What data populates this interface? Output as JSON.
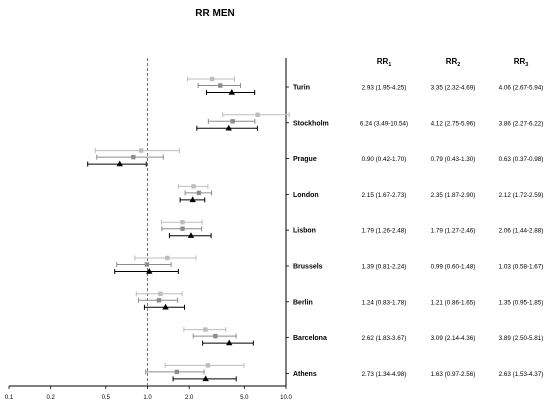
{
  "chart_data": {
    "type": "forest",
    "title": "RR MEN",
    "x_scale": "log",
    "xlim": [
      0.1,
      10.0
    ],
    "x_ticks": [
      "0.1",
      "0.2",
      "0.5",
      "1.0",
      "2.0",
      "5.0",
      "10.0"
    ],
    "reference_line": 1.0,
    "columns": [
      {
        "base": "RR",
        "sub": "1"
      },
      {
        "base": "RR",
        "sub": "2"
      },
      {
        "base": "RR",
        "sub": "3"
      }
    ],
    "rows": [
      {
        "city": "Turin",
        "rr": [
          {
            "est": 2.93,
            "lo": 1.95,
            "hi": 4.25,
            "text": "2.93 (1.95-4.25)"
          },
          {
            "est": 3.35,
            "lo": 2.32,
            "hi": 4.69,
            "text": "3.35 (2.32-4.69)"
          },
          {
            "est": 4.06,
            "lo": 2.67,
            "hi": 5.94,
            "text": "4.06 (2.67-5.94)"
          }
        ]
      },
      {
        "city": "Stockholm",
        "rr": [
          {
            "est": 6.24,
            "lo": 3.49,
            "hi": 10.54,
            "text": "6.24 (3.49-10.54)"
          },
          {
            "est": 4.12,
            "lo": 2.75,
            "hi": 5.96,
            "text": "4.12 (2.75-5.96)"
          },
          {
            "est": 3.86,
            "lo": 2.27,
            "hi": 6.22,
            "text": "3.86 (2.27-6.22)"
          }
        ]
      },
      {
        "city": "Prague",
        "rr": [
          {
            "est": 0.9,
            "lo": 0.42,
            "hi": 1.7,
            "text": "0.90 (0.42-1.70)"
          },
          {
            "est": 0.79,
            "lo": 0.43,
            "hi": 1.3,
            "text": "0.79 (0.43-1.30)"
          },
          {
            "est": 0.63,
            "lo": 0.37,
            "hi": 0.98,
            "text": "0.63 (0.37-0.98)"
          }
        ]
      },
      {
        "city": "London",
        "rr": [
          {
            "est": 2.15,
            "lo": 1.67,
            "hi": 2.73,
            "text": "2.15 (1.67-2.73)"
          },
          {
            "est": 2.35,
            "lo": 1.87,
            "hi": 2.9,
            "text": "2.35 (1.87-2.90)"
          },
          {
            "est": 2.12,
            "lo": 1.72,
            "hi": 2.59,
            "text": "2.12 (1.72-2.59)"
          }
        ]
      },
      {
        "city": "Lisbon",
        "rr": [
          {
            "est": 1.79,
            "lo": 1.26,
            "hi": 2.48,
            "text": "1.79 (1.26-2.48)"
          },
          {
            "est": 1.79,
            "lo": 1.27,
            "hi": 2.46,
            "text": "1.79 (1.27-2.46)"
          },
          {
            "est": 2.06,
            "lo": 1.44,
            "hi": 2.88,
            "text": "2.06 (1.44-2.88)"
          }
        ]
      },
      {
        "city": "Brussels",
        "rr": [
          {
            "est": 1.39,
            "lo": 0.81,
            "hi": 2.24,
            "text": "1.39 (0.81-2.24)"
          },
          {
            "est": 0.99,
            "lo": 0.6,
            "hi": 1.48,
            "text": "0.99 (0.60-1.48)"
          },
          {
            "est": 1.03,
            "lo": 0.58,
            "hi": 1.67,
            "text": "1.03 (0.58-1.67)"
          }
        ]
      },
      {
        "city": "Berlin",
        "rr": [
          {
            "est": 1.24,
            "lo": 0.83,
            "hi": 1.78,
            "text": "1.24 (0.83-1.78)"
          },
          {
            "est": 1.21,
            "lo": 0.86,
            "hi": 1.65,
            "text": "1.21 (0.86-1.65)"
          },
          {
            "est": 1.35,
            "lo": 0.95,
            "hi": 1.85,
            "text": "1.35 (0.95-1.85)"
          }
        ]
      },
      {
        "city": "Barcelona",
        "rr": [
          {
            "est": 2.62,
            "lo": 1.83,
            "hi": 3.67,
            "text": "2.62 (1.83-3.67)"
          },
          {
            "est": 3.09,
            "lo": 2.14,
            "hi": 4.36,
            "text": "3.09 (2.14-4.36)"
          },
          {
            "est": 3.89,
            "lo": 2.5,
            "hi": 5.81,
            "text": "3.89 (2.50-5.81)"
          }
        ]
      },
      {
        "city": "Athens",
        "rr": [
          {
            "est": 2.73,
            "lo": 1.34,
            "hi": 4.98,
            "text": "2.73 (1.34-4.98)"
          },
          {
            "est": 1.63,
            "lo": 0.97,
            "hi": 2.56,
            "text": "1.63 (0.97-2.56)"
          },
          {
            "est": 2.63,
            "lo": 1.53,
            "hi": 4.37,
            "text": "2.63 (1.53-4.37)"
          }
        ]
      }
    ],
    "series_colors": [
      "#bdbdbd",
      "#8c8c8c",
      "#000000"
    ],
    "series_markers": [
      "square",
      "square",
      "triangle"
    ]
  }
}
